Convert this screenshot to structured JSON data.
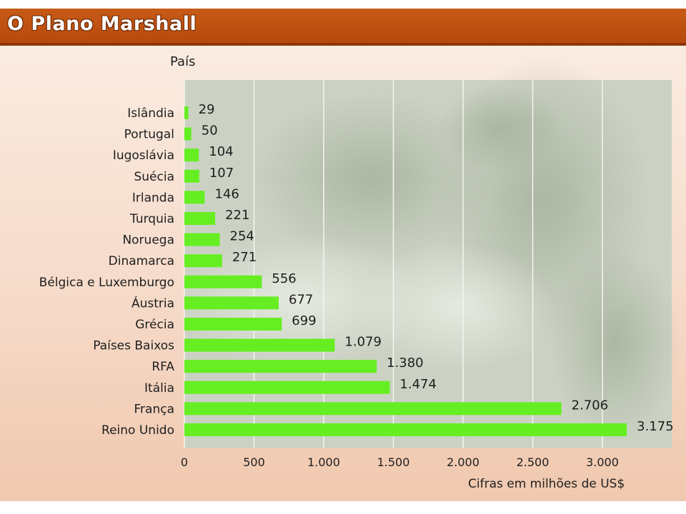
{
  "header": {
    "title": "O Plano Marshall"
  },
  "colors": {
    "bar": "#66ee22",
    "header": "#c05214",
    "plot_bg": "#cbd2c4"
  },
  "chart_data": {
    "type": "bar",
    "orientation": "horizontal",
    "title": "O Plano Marshall",
    "ylabel": "País",
    "xlabel": "Cifras em milhões de US$",
    "xlim": [
      0,
      3500
    ],
    "xticks": [
      0,
      500,
      1000,
      1500,
      2000,
      2500,
      3000
    ],
    "xtick_labels": [
      "0",
      "500",
      "1.000",
      "1.500",
      "2.000",
      "2.500",
      "3.000"
    ],
    "grid": true,
    "categories": [
      "Islândia",
      "Portugal",
      "Iugoslávia",
      "Suécia",
      "Irlanda",
      "Turquia",
      "Noruega",
      "Dinamarca",
      "Bélgica e Luxemburgo",
      "Áustria",
      "Grécia",
      "Países Baixos",
      "RFA",
      "Itália",
      "França",
      "Reino Unido"
    ],
    "values": [
      29,
      50,
      104,
      107,
      146,
      221,
      254,
      271,
      556,
      677,
      699,
      1079,
      1380,
      1474,
      2706,
      3175
    ],
    "value_labels": [
      "29",
      "50",
      "104",
      "107",
      "146",
      "221",
      "254",
      "271",
      "556",
      "677",
      "699",
      "1.079",
      "1.380",
      "1.474",
      "2.706",
      "3.175"
    ]
  }
}
